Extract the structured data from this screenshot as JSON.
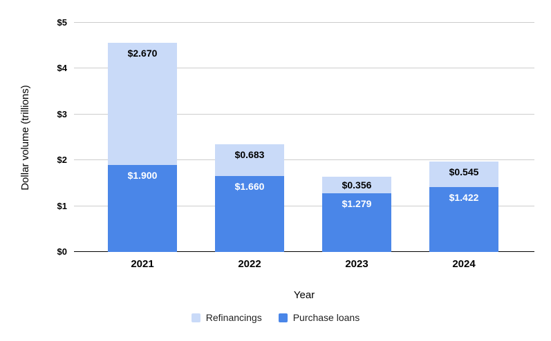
{
  "chart_data": {
    "type": "bar",
    "stacked": true,
    "title": "",
    "xlabel": "Year",
    "ylabel": "Dollar volume (trillions)",
    "categories": [
      "2021",
      "2022",
      "2023",
      "2024"
    ],
    "series": [
      {
        "name": "Refinancings",
        "color": "#c9daf8",
        "label_color": "#000000",
        "values": [
          2.67,
          0.683,
          0.356,
          0.545
        ],
        "labels": [
          "$2.670",
          "$0.683",
          "$0.356",
          "$0.545"
        ]
      },
      {
        "name": "Purchase loans",
        "color": "#4a86e8",
        "label_color": "#ffffff",
        "values": [
          1.9,
          1.66,
          1.279,
          1.422
        ],
        "labels": [
          "$1.900",
          "$1.660",
          "$1.279",
          "$1.422"
        ]
      }
    ],
    "stack_order_bottom_to_top": [
      "Purchase loans",
      "Refinancings"
    ],
    "ylim": [
      0,
      5
    ],
    "ytick_step": 1,
    "ytick_labels": [
      "$0",
      "$1",
      "$2",
      "$3",
      "$4",
      "$5"
    ],
    "grid": true,
    "legend_position": "bottom",
    "colors": {
      "gridline": "#cccccc",
      "axis_line": "#000000",
      "tick_label": "#000000",
      "background": "#ffffff"
    }
  }
}
